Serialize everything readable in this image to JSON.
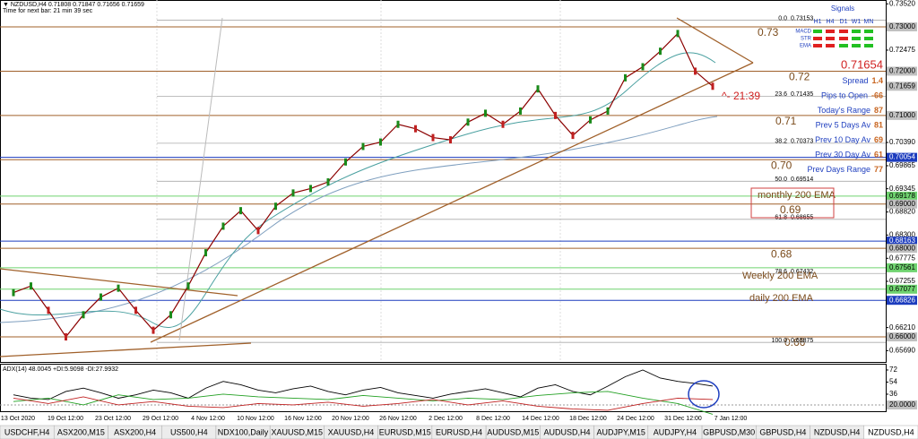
{
  "header": {
    "symbol_line": "▼ NZDUSD,H4  0.71808 0.71847 0.71656 0.71659",
    "timer": "Time for next bar: 21 min 39 sec"
  },
  "price_chart": {
    "ylim": [
      0.65414,
      0.73607
    ],
    "yticks": [
      {
        "value": 0.7352,
        "label": "0.73520"
      },
      0.72475,
      {
        "value": 0.7039,
        "label": "0.70390"
      },
      0.69865,
      0.69345,
      {
        "value": 0.6882,
        "label": "0.68820"
      },
      {
        "value": 0.683,
        "label": "0.68300"
      },
      0.67775,
      0.67255,
      {
        "value": 0.6621,
        "label": "0.66210"
      },
      {
        "value": 0.6569,
        "label": "0.65690"
      }
    ],
    "price_markers": [
      {
        "value": 0.73,
        "label": "0.73000",
        "color": "#c0c0c0",
        "line": false
      },
      {
        "value": 0.72,
        "label": "0.72000",
        "color": "#c0c0c0",
        "line": false
      },
      {
        "value": 0.71659,
        "color": "#c0c0c0",
        "line": false
      },
      {
        "value": 0.71,
        "label": "0.71000",
        "color": "#c0c0c0",
        "line": false
      },
      {
        "value": 0.70054,
        "color": "#1c3cbe",
        "line": true
      },
      {
        "value": 0.69178,
        "color": "#6fd36f",
        "line": true
      },
      {
        "value": 0.69,
        "label": "0.69000",
        "color": "#c0c0c0",
        "line": false
      },
      {
        "value": 0.68163,
        "color": "#1c3cbe",
        "line": true
      },
      {
        "value": 0.68,
        "label": "0.68000",
        "color": "#c0c0c0",
        "line": false
      },
      {
        "value": 0.67561,
        "color": "#6fd36f",
        "line": true
      },
      {
        "value": 0.67077,
        "color": "#6fd36f",
        "line": true
      },
      {
        "value": 0.66826,
        "color": "#1c3cbe",
        "line": true
      },
      {
        "value": 0.66,
        "label": "0.66000",
        "color": "#c0c0c0",
        "line": false
      }
    ],
    "levels": [
      0.73,
      0.72,
      0.71,
      {
        "value": 0.7,
        "label": "0.70"
      },
      0.69,
      0.68,
      0.66
    ],
    "fibonacci": [
      {
        "level": "0.0",
        "price": 0.73153
      },
      {
        "level": "23.6",
        "price": 0.71435
      },
      {
        "level": "38.2",
        "price": 0.70373
      },
      {
        "level": "50.0",
        "price": 0.69514
      },
      {
        "level": "61.8",
        "price": 0.68655
      },
      {
        "level": "78.6",
        "price": 0.67432
      },
      {
        "level": "100.0",
        "price": 0.65875
      }
    ],
    "annotations": [
      "monthly 200 EMA",
      "Weekly 200 EMA",
      "daily 200 EMA"
    ],
    "countdown": "^- 21:39",
    "close_series": {
      "color": "#8b0000",
      "values": [
        0.67,
        0.6715,
        0.666,
        0.66,
        0.665,
        0.669,
        0.671,
        0.666,
        0.6615,
        0.665,
        0.6715,
        0.679,
        0.685,
        0.6885,
        0.684,
        0.6895,
        0.6925,
        0.6935,
        0.695,
        0.6995,
        0.703,
        0.704,
        0.708,
        0.707,
        0.705,
        0.7045,
        0.7085,
        0.7105,
        0.708,
        0.711,
        0.716,
        0.71,
        0.7055,
        0.709,
        0.711,
        0.7185,
        0.721,
        0.7245,
        0.7285,
        0.72,
        0.71659
      ]
    },
    "dates": [
      "13 Oct 2020",
      "19 Oct 12:00",
      "23 Oct 12:00",
      "29 Oct 12:00",
      "4 Nov 12:00",
      "10 Nov 12:00",
      "16 Nov 12:00",
      "20 Nov 12:00",
      "26 Nov 12:00",
      "2 Dec 12:00",
      "8 Dec 12:00",
      "14 Dec 12:00",
      "18 Dec 12:00",
      "24 Dec 12:00",
      "31 Dec 12:00",
      "7 Jan 12:00"
    ]
  },
  "info_panel": {
    "price": "0.71654",
    "rows": [
      {
        "label": "Spread",
        "value": 1.4
      },
      {
        "label": "Pips to Open",
        "value": -66
      },
      {
        "label": "Today's Range",
        "value": 87
      },
      {
        "label": "Prev 5 Days Av",
        "value": 81
      },
      {
        "label": "Prev 10 Day Av",
        "value": 69
      },
      {
        "label": "Prev 30 Day Av",
        "value": 61
      },
      {
        "label": "Prev Days Range",
        "value": 77
      }
    ]
  },
  "signals": {
    "title": "Signals",
    "timeframes": [
      "H1",
      "H4",
      "D1",
      "W1",
      "MN"
    ],
    "rows": [
      {
        "name": "MACD",
        "states": [
          "#22c022",
          "#e02020",
          "#e02020",
          "#22c022",
          "#22c022"
        ]
      },
      {
        "name": "STR",
        "states": [
          "#e02020",
          "#e02020",
          "#e02020",
          "#22c022",
          "#22c022"
        ]
      },
      {
        "name": "EMA",
        "states": [
          "#e02020",
          "#e02020",
          "#22c022",
          "#22c022",
          "#22c022"
        ]
      }
    ]
  },
  "adx_panel": {
    "title": "ADX(14) 48.0045 +DI:5.9098 -DI:27.9932",
    "ylim": [
      9.3,
      81.3
    ],
    "yticks": [
      72,
      54,
      36
    ],
    "marker": {
      "value": 20,
      "label": "20.0000"
    },
    "adx": {
      "color": "#000000",
      "values": [
        35,
        30,
        28,
        40,
        45,
        38,
        30,
        35,
        42,
        38,
        30,
        45,
        55,
        50,
        42,
        38,
        44,
        48,
        40,
        35,
        42,
        46,
        38,
        34,
        30,
        36,
        40,
        44,
        38,
        32,
        45,
        50,
        40,
        35,
        48,
        62,
        72,
        60,
        55,
        52,
        48
      ]
    },
    "plus_di": {
      "color": "#22a022",
      "values": [
        25,
        30,
        20,
        35,
        28,
        30,
        36,
        32,
        30,
        28,
        34,
        30,
        26,
        30,
        28,
        34,
        38,
        40,
        30,
        22,
        6
      ]
    },
    "minus_di": {
      "color": "#c02020",
      "values": [
        30,
        22,
        32,
        20,
        25,
        18,
        16,
        22,
        20,
        24,
        18,
        22,
        28,
        20,
        26,
        18,
        14,
        12,
        22,
        30,
        28
      ]
    }
  },
  "tabs": {
    "items": [
      "USDCHF,H4",
      "ASX200,M15",
      "ASX200,H4",
      "US500,H4",
      "NDX100,Daily",
      "XAUUSD,M15",
      "XAUUSD,H4",
      "EURUSD,M15",
      "EURUSD,H4",
      "AUDUSD,M15",
      "AUDUSD,H4",
      "AUDJPY,M15",
      "AUDJPY,H4",
      "GBPUSD,M30",
      "GBPUSD,H4",
      "NZDUSD,H4",
      "NZDUSD,H4"
    ],
    "active": 16
  }
}
